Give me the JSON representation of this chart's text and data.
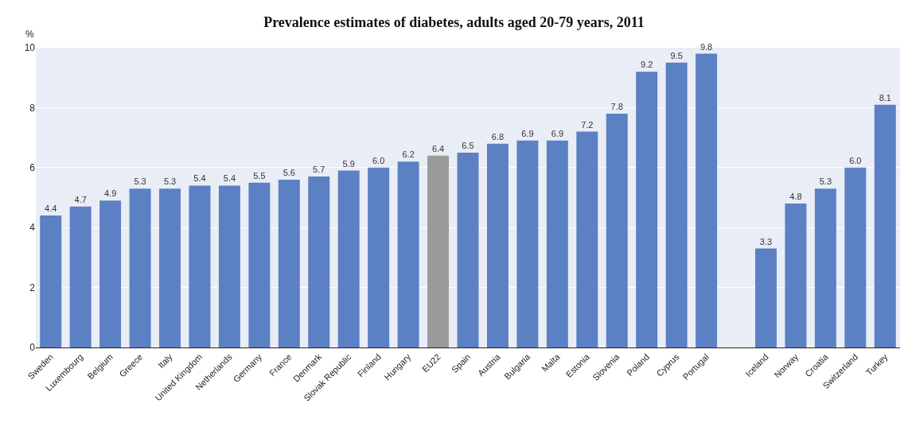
{
  "chart_data": {
    "type": "bar",
    "title": "Prevalence estimates of diabetes, adults aged 20-79 years, 2011",
    "ylabel": "%",
    "categories": [
      "Sweden",
      "Luxembourg",
      "Belgium",
      "Greece",
      "Italy",
      "United Kingdom",
      "Netherlands",
      "Germany",
      "France",
      "Denmark",
      "Slovak Republic",
      "Finland",
      "Hungary",
      "EU22",
      "Spain",
      "Austria",
      "Bulgaria",
      "Malta",
      "Estonia",
      "Slovenia",
      "Poland",
      "Cyprus",
      "Portugal",
      null,
      "Iceland",
      "Norway",
      "Croatia",
      "Switzerland",
      "Turkey"
    ],
    "values": [
      4.4,
      4.7,
      4.9,
      5.3,
      5.3,
      5.4,
      5.4,
      5.5,
      5.6,
      5.7,
      5.9,
      6.0,
      6.2,
      6.4,
      6.5,
      6.8,
      6.9,
      6.9,
      7.2,
      7.8,
      9.2,
      9.5,
      9.8,
      null,
      3.3,
      4.8,
      5.3,
      6.0,
      8.1
    ],
    "value_labels": [
      "4.4",
      "4.7",
      "4.9",
      "5.3",
      "5.3",
      "5.4",
      "5.4",
      "5.5",
      "5.6",
      "5.7",
      "5.9",
      "6.0",
      "6.2",
      "6.4",
      "6.5",
      "6.8",
      "6.9",
      "6.9",
      "7.2",
      "7.8",
      "9.2",
      "9.5",
      "9.8",
      null,
      "3.3",
      "4.8",
      "5.3",
      "6.0",
      "8.1"
    ],
    "colors": [
      "#5b80c4",
      "#5b80c4",
      "#5b80c4",
      "#5b80c4",
      "#5b80c4",
      "#5b80c4",
      "#5b80c4",
      "#5b80c4",
      "#5b80c4",
      "#5b80c4",
      "#5b80c4",
      "#5b80c4",
      "#5b80c4",
      "#9a9a9a",
      "#5b80c4",
      "#5b80c4",
      "#5b80c4",
      "#5b80c4",
      "#5b80c4",
      "#5b80c4",
      "#5b80c4",
      "#5b80c4",
      "#5b80c4",
      "#5b80c4",
      "#5b80c4",
      "#5b80c4",
      "#5b80c4",
      "#5b80c4",
      "#5b80c4"
    ],
    "ylim": [
      0,
      10
    ],
    "yticks": [
      0,
      2,
      4,
      6,
      8,
      10
    ],
    "grid": "y"
  }
}
